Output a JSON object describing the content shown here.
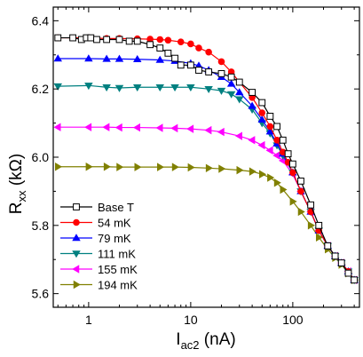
{
  "chart_data": {
    "type": "line",
    "xlabel": {
      "main": "I",
      "sub": "ac2",
      "unit": " (nA)"
    },
    "ylabel": {
      "main": "R",
      "sub": "xx",
      "unit": " (kΩ)"
    },
    "xscale": "log",
    "xlim": [
      0.45,
      450
    ],
    "ylim": [
      5.56,
      6.44
    ],
    "xticks": [
      1,
      10,
      100
    ],
    "xtick_labels": [
      "1",
      "10",
      "100"
    ],
    "yticks": [
      5.6,
      5.8,
      6.0,
      6.2,
      6.4
    ],
    "ytick_labels": [
      "5.6",
      "5.8",
      "6.0",
      "6.2",
      "6.4"
    ],
    "legend_position": "lower-left",
    "series": [
      {
        "name": "Base T",
        "color": "#000000",
        "marker": "open-square",
        "x": [
          0.5,
          0.7,
          0.85,
          0.95,
          1.05,
          1.2,
          1.5,
          2,
          2.5,
          3,
          4,
          5,
          6,
          7,
          8,
          10,
          12,
          15,
          20,
          25,
          30,
          40,
          50,
          60,
          70,
          80,
          90,
          100,
          120,
          150,
          180,
          220,
          260,
          300,
          350,
          400
        ],
        "y": [
          6.35,
          6.35,
          6.345,
          6.35,
          6.35,
          6.345,
          6.345,
          6.345,
          6.34,
          6.34,
          6.33,
          6.32,
          6.305,
          6.29,
          6.27,
          6.27,
          6.255,
          6.25,
          6.245,
          6.235,
          6.22,
          6.19,
          6.16,
          6.12,
          6.09,
          6.05,
          6.01,
          5.98,
          5.93,
          5.86,
          5.8,
          5.74,
          5.71,
          5.69,
          5.66,
          5.64
        ]
      },
      {
        "name": "54 mK",
        "color": "#ff0000",
        "marker": "filled-circle",
        "x": [
          0.5,
          1,
          1.5,
          2,
          3,
          4,
          5,
          6,
          8,
          10,
          12,
          15,
          20,
          25,
          30,
          40,
          50,
          60,
          70,
          80,
          90,
          100,
          120,
          150,
          180,
          220,
          260,
          300,
          350,
          400
        ],
        "y": [
          6.35,
          6.35,
          6.348,
          6.348,
          6.347,
          6.346,
          6.345,
          6.343,
          6.338,
          6.332,
          6.32,
          6.308,
          6.28,
          6.25,
          6.22,
          6.175,
          6.13,
          6.09,
          6.05,
          6.015,
          5.985,
          5.955,
          5.9,
          5.84,
          5.785,
          5.74,
          5.71,
          5.69,
          5.665,
          5.64
        ]
      },
      {
        "name": "79 mK",
        "color": "#0000ff",
        "marker": "filled-triangle-up",
        "x": [
          0.5,
          1,
          1.5,
          2,
          3,
          5,
          7,
          10,
          12,
          15,
          20,
          25,
          30,
          40,
          50,
          60,
          70,
          80,
          100,
          120,
          150,
          180,
          220,
          260,
          300,
          350,
          400
        ],
        "y": [
          6.289,
          6.289,
          6.288,
          6.288,
          6.287,
          6.285,
          6.282,
          6.275,
          6.268,
          6.255,
          6.235,
          6.215,
          6.19,
          6.15,
          6.11,
          6.075,
          6.04,
          6.01,
          5.955,
          5.9,
          5.84,
          5.785,
          5.74,
          5.71,
          5.69,
          5.665,
          5.64
        ]
      },
      {
        "name": "111 mK",
        "color": "#008080",
        "marker": "filled-triangle-down",
        "x": [
          0.5,
          1,
          1.5,
          2,
          3,
          5,
          7,
          10,
          15,
          20,
          25,
          30,
          40,
          50,
          60,
          70,
          80,
          100,
          120,
          150,
          180,
          220,
          260,
          300,
          350,
          400
        ],
        "y": [
          6.208,
          6.21,
          6.205,
          6.203,
          6.205,
          6.205,
          6.205,
          6.205,
          6.2,
          6.195,
          6.185,
          6.17,
          6.14,
          6.1,
          6.07,
          6.035,
          6.005,
          5.955,
          5.9,
          5.84,
          5.785,
          5.74,
          5.71,
          5.69,
          5.665,
          5.64
        ]
      },
      {
        "name": "155 mK",
        "color": "#ff00ff",
        "marker": "filled-triangle-left",
        "x": [
          0.5,
          1,
          1.5,
          2,
          3,
          5,
          7,
          10,
          15,
          20,
          30,
          40,
          50,
          60,
          70,
          80,
          100,
          120,
          150,
          180,
          220,
          260,
          300,
          350,
          400
        ],
        "y": [
          6.088,
          6.088,
          6.088,
          6.087,
          6.087,
          6.086,
          6.085,
          6.083,
          6.079,
          6.074,
          6.062,
          6.05,
          6.035,
          6.02,
          6.005,
          5.99,
          5.95,
          5.9,
          5.84,
          5.785,
          5.74,
          5.71,
          5.69,
          5.665,
          5.64
        ]
      },
      {
        "name": "194 mK",
        "color": "#808000",
        "marker": "filled-triangle-right",
        "x": [
          0.5,
          1,
          1.5,
          2,
          3,
          5,
          7,
          10,
          15,
          20,
          30,
          40,
          50,
          60,
          70,
          80,
          100,
          120,
          150,
          180,
          220,
          260,
          300,
          350,
          400
        ],
        "y": [
          5.972,
          5.972,
          5.972,
          5.971,
          5.971,
          5.971,
          5.971,
          5.97,
          5.968,
          5.966,
          5.962,
          5.958,
          5.95,
          5.94,
          5.925,
          5.905,
          5.87,
          5.84,
          5.8,
          5.765,
          5.73,
          5.705,
          5.685,
          5.66,
          5.64
        ]
      }
    ]
  }
}
